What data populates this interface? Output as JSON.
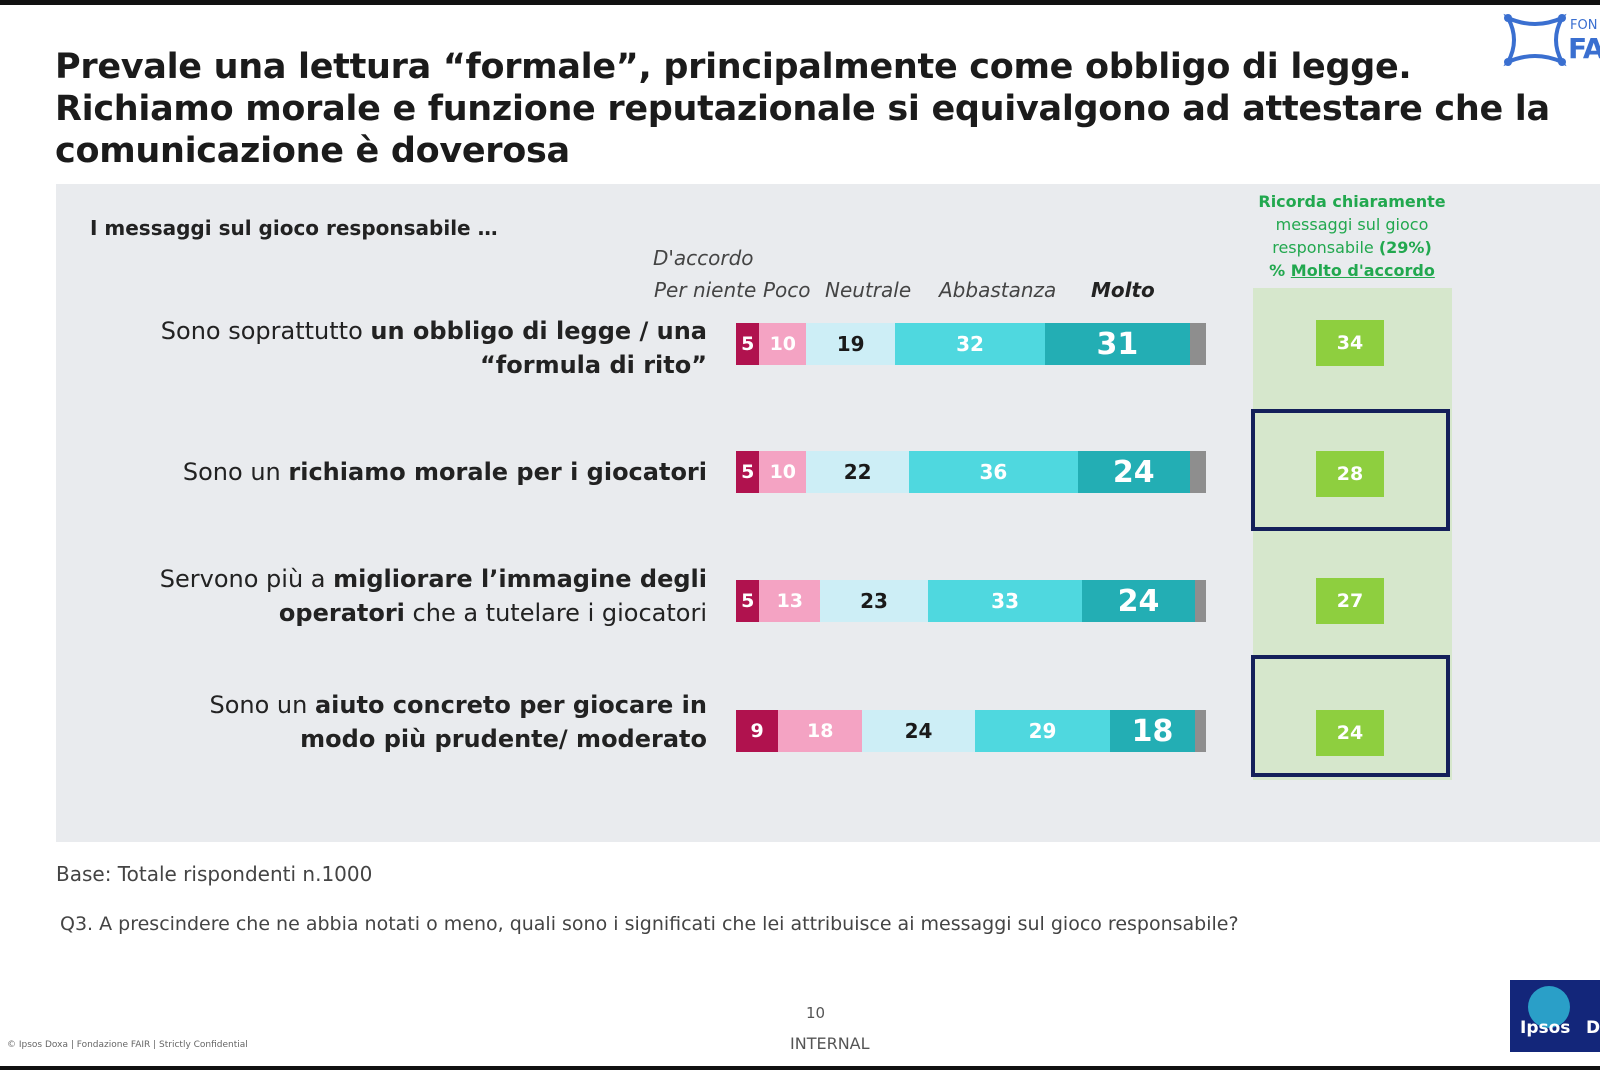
{
  "title": {
    "line1": "Prevale una lettura “formale”, principalmente come obbligo di legge.",
    "line2": "Richiamo morale e funzione reputazionale si equivalgono ad attestare che la",
    "line3": "comunicazione è doverosa"
  },
  "logo": {
    "text": "FA",
    "small": "FON"
  },
  "chart_data": {
    "type": "bar",
    "orientation": "horizontal-stacked-100",
    "intro": "I messaggi sul gioco responsabile …",
    "scale_header_top": "D'accordo",
    "categories": [
      {
        "plain_before": "Sono soprattutto ",
        "bold": "un obbligo di legge / una “formula di rito”",
        "plain_after": ""
      },
      {
        "plain_before": "Sono un ",
        "bold": "richiamo morale per i giocatori",
        "plain_after": ""
      },
      {
        "plain_before": "Servono più a ",
        "bold": "migliorare l’immagine degli operatori",
        "plain_after": " che a tutelare i giocatori"
      },
      {
        "plain_before": "Sono un ",
        "bold": "aiuto concreto per giocare in modo più prudente/ moderato",
        "plain_after": ""
      }
    ],
    "series": [
      {
        "name": "Per niente",
        "color": "#b0124e",
        "text_color": "#ffffff",
        "values": [
          5,
          5,
          5,
          9
        ]
      },
      {
        "name": "Poco",
        "color": "#f4a3c3",
        "text_color": "#ffffff",
        "values": [
          10,
          10,
          13,
          18
        ]
      },
      {
        "name": "Neutrale",
        "color": "#cdeef6",
        "text_color": "#1a1a1a",
        "values": [
          19,
          22,
          23,
          24
        ]
      },
      {
        "name": "Abbastanza",
        "color": "#4fd8df",
        "text_color": "#ffffff",
        "values": [
          32,
          36,
          33,
          29
        ]
      },
      {
        "name": "Molto",
        "color": "#23aeb4",
        "text_color": "#ffffff",
        "values": [
          31,
          24,
          24,
          18
        ]
      }
    ],
    "no_answer_color": "#8e8e8e",
    "side_column": {
      "header_line1": "Ricorda chiaramente",
      "header_line2": "messaggi sul gioco",
      "header_line3_plain": "responsabile ",
      "header_line3_bold": "(29%)",
      "header_line4_prefix": "% ",
      "header_line4_underlined": "Molto d'accordo",
      "values": [
        34,
        28,
        27,
        24
      ],
      "highlighted": [
        false,
        true,
        false,
        true
      ],
      "box_color": "#8ecf3f"
    }
  },
  "footer": {
    "base": "Base: Totale rispondenti n.1000",
    "question": "Q3. A prescindere che ne abbia notati o meno, quali sono i significati che lei attribuisce ai messaggi sul gioco responsabile?",
    "page": "10",
    "classification": "INTERNAL",
    "copyright": "© Ipsos Doxa | Fondazione FAIR | Strictly Confidential",
    "ipsos_text": "Ipsos",
    "ipsos_d": "D"
  }
}
